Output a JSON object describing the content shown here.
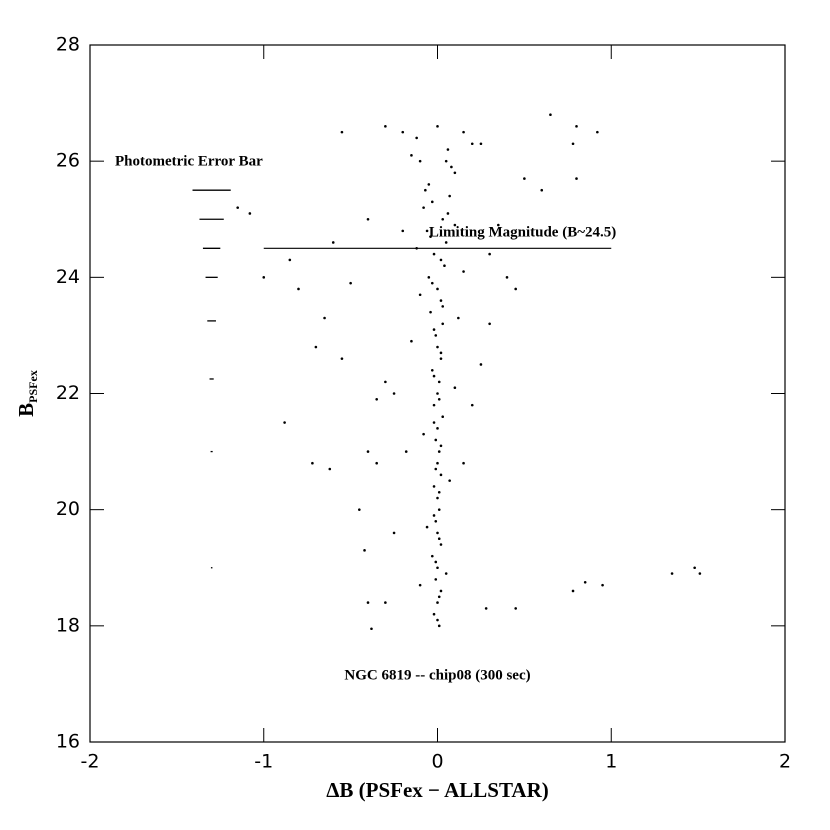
{
  "chart_data": {
    "type": "scatter",
    "title": "NGC 6819 -- chip08 (300 sec)",
    "xlabel": "ΔB (PSFex − ALLSTAR)",
    "ylabel": "B",
    "ylabel_sub": "PSFex",
    "xlim": [
      -2,
      2
    ],
    "ylim": [
      16,
      28
    ],
    "xticks": [
      -2,
      -1,
      0,
      1,
      2
    ],
    "yticks": [
      16,
      18,
      20,
      22,
      24,
      26,
      28
    ],
    "color": "#000000",
    "x": [
      0.01,
      -0.02,
      0.0,
      0.02,
      -0.01,
      0.0,
      -0.03,
      0.02,
      0.0,
      -0.01,
      0.01,
      0.0,
      -0.02,
      0.02,
      0.0,
      0.01,
      -0.01,
      0.0,
      0.03,
      -0.02,
      0.0,
      0.01,
      -0.03,
      0.02,
      0.0,
      -0.01,
      0.03,
      -0.04,
      0.02,
      0.0,
      -0.05,
      0.04,
      -0.02,
      0.05,
      -0.06,
      0.03,
      -0.08,
      0.07,
      -0.05,
      0.1,
      -0.1,
      0.06,
      -0.12,
      0.15,
      0.0,
      0.0,
      0.01,
      -0.01,
      0.01,
      -0.02,
      0.01,
      -0.01,
      0.02,
      -0.02,
      0.01,
      -0.02,
      0.02,
      -0.02,
      0.03,
      -0.03,
      0.02,
      -0.04,
      0.06,
      -0.07,
      0.08,
      -0.15,
      0.2,
      -0.2,
      0.25,
      0.05,
      -0.03,
      0.1,
      -0.12,
      0.15,
      -0.1,
      0.12,
      -0.15,
      0.1,
      -0.08,
      0.07,
      -0.06,
      0.05,
      -0.55,
      -0.3,
      -0.4,
      -0.6,
      -0.85,
      -0.8,
      -0.65,
      -0.7,
      -0.88,
      -0.72,
      -0.62,
      -0.45,
      -0.42,
      -0.4,
      -0.38,
      -0.3,
      -0.1,
      0.28,
      0.45,
      0.78,
      0.85,
      0.95,
      1.35,
      1.48,
      1.51,
      0.65,
      0.8,
      0.78,
      0.92,
      0.8,
      0.5,
      0.4,
      0.45,
      0.3,
      0.25,
      -0.3,
      -0.35,
      -0.4,
      -0.35,
      -1.15,
      -1.08,
      -1.0,
      -0.5,
      -0.25,
      0.2,
      0.6,
      -0.2,
      0.35,
      -0.55,
      0.15,
      -0.25,
      -0.18,
      0.3
    ],
    "y": [
      18.0,
      18.2,
      18.4,
      18.6,
      18.8,
      19.0,
      19.2,
      19.4,
      19.6,
      19.8,
      20.0,
      20.2,
      20.4,
      20.6,
      20.8,
      21.0,
      21.2,
      21.4,
      21.6,
      21.8,
      22.0,
      22.2,
      22.4,
      22.6,
      22.8,
      23.0,
      23.2,
      23.4,
      23.6,
      23.8,
      24.0,
      24.2,
      24.4,
      24.6,
      24.8,
      25.0,
      25.2,
      25.4,
      25.6,
      25.8,
      26.0,
      26.2,
      26.4,
      26.5,
      26.6,
      18.1,
      18.5,
      19.1,
      19.5,
      19.9,
      20.3,
      20.7,
      21.1,
      21.5,
      21.9,
      22.3,
      22.7,
      23.1,
      23.5,
      23.9,
      24.3,
      24.7,
      25.1,
      25.5,
      25.9,
      26.1,
      26.3,
      26.5,
      26.3,
      26.0,
      25.3,
      24.9,
      24.5,
      24.1,
      23.7,
      23.3,
      22.9,
      22.1,
      21.3,
      20.5,
      19.7,
      18.9,
      26.5,
      26.6,
      25.0,
      24.6,
      24.3,
      23.8,
      23.3,
      22.8,
      21.5,
      20.8,
      20.7,
      20.0,
      19.3,
      18.4,
      17.95,
      18.4,
      18.7,
      18.3,
      18.3,
      18.6,
      18.75,
      18.7,
      18.9,
      19.0,
      18.9,
      26.8,
      26.6,
      26.3,
      26.5,
      25.7,
      25.7,
      24.0,
      23.8,
      23.2,
      22.5,
      22.2,
      21.9,
      21.0,
      20.8,
      25.2,
      25.1,
      24.0,
      23.9,
      22.0,
      21.8,
      25.5,
      24.8,
      24.9,
      22.6,
      20.8,
      19.6,
      21.0,
      24.4
    ],
    "error_bars": {
      "label": "Photometric Error Bar",
      "x": -1.3,
      "y": [
        25.5,
        25.0,
        24.5,
        24.0,
        23.25,
        22.25,
        21.0,
        19.0
      ],
      "xerr": [
        0.11,
        0.07,
        0.05,
        0.035,
        0.025,
        0.012,
        0.006,
        0.004
      ]
    },
    "limit_line": {
      "label": "Limiting Magnitude (B~24.5)",
      "value": 24.5,
      "xmin": -1,
      "xmax": 1
    }
  }
}
